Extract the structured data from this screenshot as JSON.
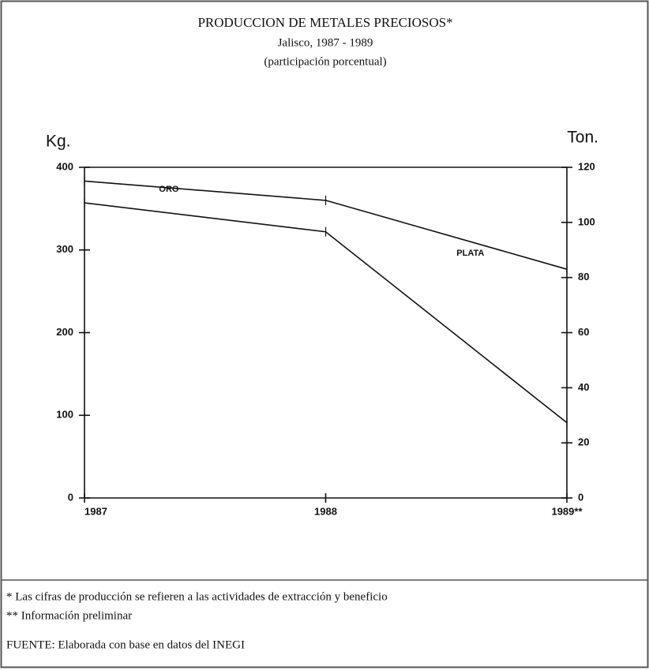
{
  "chart_data": {
    "type": "line",
    "title": "PRODUCCION DE METALES PRECIOSOS*",
    "subtitle": "Jalisco, 1987 - 1989",
    "subtitle2": "(participación porcentual)",
    "ylabel": "Kg.",
    "y2label": "Ton.",
    "categories": [
      "1987",
      "1988",
      "1989**"
    ],
    "series": [
      {
        "name": "ORO",
        "color": "#111111",
        "values": [
          357,
          322,
          91
        ]
      },
      {
        "name": "PLATA",
        "color": "#111111",
        "axis": "y2",
        "values": [
          115,
          108,
          83
        ]
      }
    ],
    "ylim": [
      0,
      400
    ],
    "yticks": [
      0,
      100,
      200,
      300,
      400
    ],
    "y2lim": [
      0,
      120
    ],
    "y2ticks": [
      0,
      20,
      40,
      60,
      80,
      100,
      120
    ],
    "footnotes": [
      "* Las cifras de producción se refieren a las actividades de extracción y beneficio",
      "** Información preliminar",
      "FUENTE: Elaborada con base en datos del INEGI"
    ]
  }
}
